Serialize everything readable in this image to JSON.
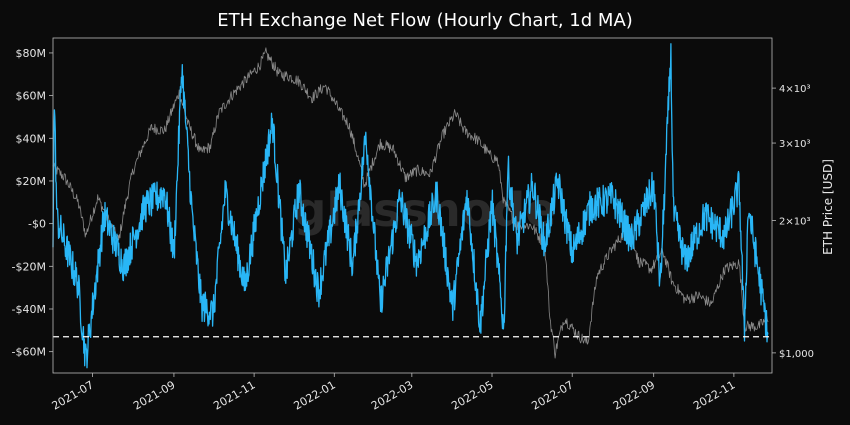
{
  "chart_data": {
    "type": "line",
    "title": "ETH Exchange Net Flow (Hourly Chart, 1d MA)",
    "watermark": "glassnode",
    "xlabel": "",
    "ylabel_left": "",
    "ylabel_right": "ETH Price [USD]",
    "x_range": [
      "2021-06-01",
      "2022-11-30"
    ],
    "x_ticks": [
      "2021-07",
      "2021-09",
      "2021-11",
      "2022-01",
      "2022-03",
      "2022-05",
      "2022-07",
      "2022-09",
      "2022-11"
    ],
    "y_left_ticks": [
      {
        "value": 80,
        "label": "$80M"
      },
      {
        "value": 60,
        "label": "$60M"
      },
      {
        "value": 40,
        "label": "$40M"
      },
      {
        "value": 20,
        "label": "$20M"
      },
      {
        "value": 0,
        "label": "-$0"
      },
      {
        "value": -20,
        "label": "-$20M"
      },
      {
        "value": -40,
        "label": "-$40M"
      },
      {
        "value": -60,
        "label": "-$60M"
      }
    ],
    "y_left_unit": "million USD",
    "y_left_range": [
      -70,
      87
    ],
    "y_right_scale": "log",
    "y_right_range": [
      900,
      5200
    ],
    "y_right_ticks": [
      {
        "value": 1000,
        "label": "$1,000"
      },
      {
        "value": 2000,
        "label": "2×10³"
      },
      {
        "value": 3000,
        "label": "3×10³"
      },
      {
        "value": 4000,
        "label": "4×10³"
      }
    ],
    "reference_line": {
      "axis": "left",
      "value": -53,
      "style": "dashed"
    },
    "grid": false,
    "colors": {
      "background": "#0b0b0b",
      "netflow": "#29b6f6",
      "price": "#8a8a8a",
      "reference": "#ffffff",
      "text": "#e6e6e6"
    },
    "series": [
      {
        "key": "price",
        "axis": "right",
        "points": [
          [
            "2021-06-01",
            2650
          ],
          [
            "2021-06-10",
            2500
          ],
          [
            "2021-06-20",
            2200
          ],
          [
            "2021-06-26",
            1850
          ],
          [
            "2021-07-05",
            2250
          ],
          [
            "2021-07-15",
            1950
          ],
          [
            "2021-07-21",
            1800
          ],
          [
            "2021-08-01",
            2600
          ],
          [
            "2021-08-15",
            3250
          ],
          [
            "2021-08-25",
            3200
          ],
          [
            "2021-09-05",
            3900
          ],
          [
            "2021-09-12",
            3300
          ],
          [
            "2021-09-21",
            2850
          ],
          [
            "2021-09-29",
            2950
          ],
          [
            "2021-10-05",
            3500
          ],
          [
            "2021-10-15",
            3850
          ],
          [
            "2021-10-25",
            4150
          ],
          [
            "2021-11-05",
            4500
          ],
          [
            "2021-11-10",
            4800
          ],
          [
            "2021-11-20",
            4300
          ],
          [
            "2021-11-28",
            4250
          ],
          [
            "2021-12-05",
            4150
          ],
          [
            "2021-12-15",
            3800
          ],
          [
            "2021-12-25",
            4050
          ],
          [
            "2022-01-05",
            3550
          ],
          [
            "2022-01-12",
            3300
          ],
          [
            "2022-01-24",
            2400
          ],
          [
            "2022-02-05",
            3000
          ],
          [
            "2022-02-15",
            2900
          ],
          [
            "2022-02-24",
            2500
          ],
          [
            "2022-03-05",
            2600
          ],
          [
            "2022-03-15",
            2550
          ],
          [
            "2022-03-25",
            3150
          ],
          [
            "2022-04-03",
            3500
          ],
          [
            "2022-04-10",
            3200
          ],
          [
            "2022-04-20",
            3050
          ],
          [
            "2022-04-30",
            2800
          ],
          [
            "2022-05-05",
            2750
          ],
          [
            "2022-05-10",
            2200
          ],
          [
            "2022-05-20",
            1950
          ],
          [
            "2022-05-31",
            1950
          ],
          [
            "2022-06-10",
            1750
          ],
          [
            "2022-06-14",
            1200
          ],
          [
            "2022-06-18",
            1000
          ],
          [
            "2022-06-25",
            1200
          ],
          [
            "2022-07-05",
            1100
          ],
          [
            "2022-07-13",
            1050
          ],
          [
            "2022-07-20",
            1500
          ],
          [
            "2022-07-30",
            1700
          ],
          [
            "2022-08-14",
            1950
          ],
          [
            "2022-08-20",
            1620
          ],
          [
            "2022-08-30",
            1550
          ],
          [
            "2022-09-08",
            1700
          ],
          [
            "2022-09-15",
            1450
          ],
          [
            "2022-09-25",
            1320
          ],
          [
            "2022-10-05",
            1350
          ],
          [
            "2022-10-15",
            1290
          ],
          [
            "2022-10-25",
            1550
          ],
          [
            "2022-11-05",
            1600
          ],
          [
            "2022-11-09",
            1150
          ],
          [
            "2022-11-20",
            1150
          ],
          [
            "2022-11-27",
            1200
          ]
        ]
      },
      {
        "key": "netflow",
        "axis": "left",
        "noise_amplitude": 8,
        "points": [
          [
            "2021-06-01",
            -5
          ],
          [
            "2021-06-02",
            58
          ],
          [
            "2021-06-04",
            2
          ],
          [
            "2021-06-20",
            -28
          ],
          [
            "2021-06-26",
            -64
          ],
          [
            "2021-07-10",
            4
          ],
          [
            "2021-07-25",
            -20
          ],
          [
            "2021-08-10",
            8
          ],
          [
            "2021-08-25",
            15
          ],
          [
            "2021-09-01",
            -15
          ],
          [
            "2021-09-07",
            74
          ],
          [
            "2021-09-15",
            3
          ],
          [
            "2021-09-22",
            -38
          ],
          [
            "2021-10-01",
            -42
          ],
          [
            "2021-10-10",
            15
          ],
          [
            "2021-10-25",
            -30
          ],
          [
            "2021-11-05",
            12
          ],
          [
            "2021-11-15",
            48
          ],
          [
            "2021-11-25",
            -25
          ],
          [
            "2021-12-05",
            16
          ],
          [
            "2021-12-20",
            -32
          ],
          [
            "2022-01-05",
            18
          ],
          [
            "2022-01-15",
            -20
          ],
          [
            "2022-01-25",
            42
          ],
          [
            "2022-02-05",
            -38
          ],
          [
            "2022-02-20",
            12
          ],
          [
            "2022-03-05",
            -18
          ],
          [
            "2022-03-20",
            14
          ],
          [
            "2022-04-01",
            -40
          ],
          [
            "2022-04-12",
            14
          ],
          [
            "2022-04-22",
            -48
          ],
          [
            "2022-05-01",
            10
          ],
          [
            "2022-05-10",
            -50
          ],
          [
            "2022-05-13",
            26
          ],
          [
            "2022-05-20",
            -8
          ],
          [
            "2022-06-01",
            18
          ],
          [
            "2022-06-10",
            -10
          ],
          [
            "2022-06-20",
            20
          ],
          [
            "2022-07-01",
            -14
          ],
          [
            "2022-07-15",
            8
          ],
          [
            "2022-08-01",
            12
          ],
          [
            "2022-08-15",
            -8
          ],
          [
            "2022-09-01",
            18
          ],
          [
            "2022-09-06",
            -30
          ],
          [
            "2022-09-14",
            80
          ],
          [
            "2022-09-16",
            5
          ],
          [
            "2022-09-25",
            -18
          ],
          [
            "2022-10-10",
            4
          ],
          [
            "2022-10-25",
            -6
          ],
          [
            "2022-11-05",
            18
          ],
          [
            "2022-11-09",
            -50
          ],
          [
            "2022-11-12",
            8
          ],
          [
            "2022-11-20",
            -24
          ],
          [
            "2022-11-27",
            -52
          ]
        ]
      }
    ]
  }
}
